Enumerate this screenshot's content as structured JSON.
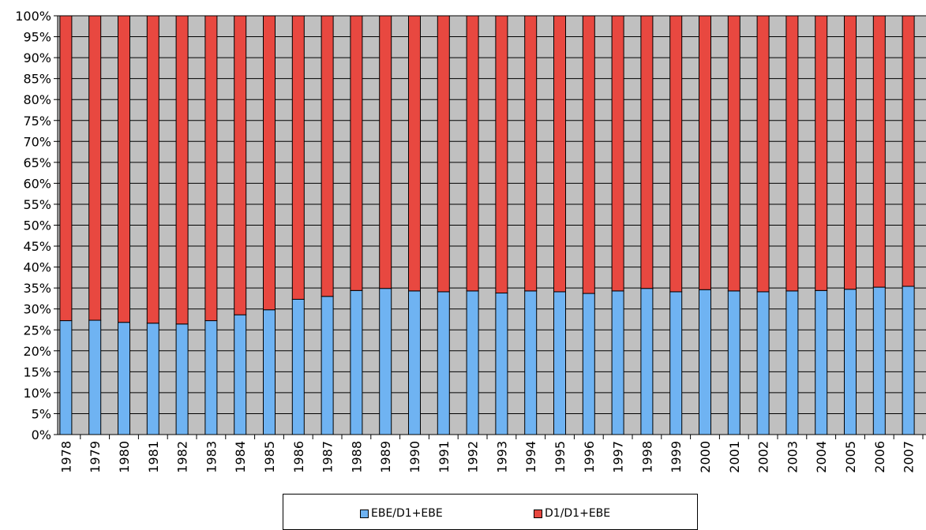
{
  "chart_data": {
    "type": "bar",
    "stacked": true,
    "categories": [
      "1978",
      "1979",
      "1980",
      "1981",
      "1982",
      "1983",
      "1984",
      "1985",
      "1986",
      "1987",
      "1988",
      "1989",
      "1990",
      "1991",
      "1992",
      "1993",
      "1994",
      "1995",
      "1996",
      "1997",
      "1998",
      "1999",
      "2000",
      "2001",
      "2002",
      "2003",
      "2004",
      "2005",
      "2006",
      "2007"
    ],
    "series": [
      {
        "name": "EBE/D1+EBE",
        "color": "#6fb3f2",
        "values": [
          27.2,
          27.3,
          26.8,
          26.6,
          26.4,
          27.2,
          28.6,
          29.8,
          32.3,
          33.0,
          34.4,
          34.9,
          34.3,
          34.1,
          34.3,
          33.8,
          34.3,
          34.1,
          33.7,
          34.3,
          34.9,
          34.1,
          34.6,
          34.3,
          34.1,
          34.3,
          34.4,
          34.7,
          35.2,
          35.4
        ]
      },
      {
        "name": "D1/D1+EBE",
        "color": "#e84840",
        "values": [
          72.8,
          72.7,
          73.2,
          73.4,
          73.6,
          72.8,
          71.4,
          70.2,
          67.7,
          67.0,
          65.6,
          65.1,
          65.7,
          65.9,
          65.7,
          66.2,
          65.7,
          65.9,
          66.3,
          65.7,
          65.1,
          65.9,
          65.4,
          65.7,
          65.9,
          65.7,
          65.6,
          65.3,
          64.8,
          64.6
        ]
      }
    ],
    "yticks": [
      "0%",
      "5%",
      "10%",
      "15%",
      "20%",
      "25%",
      "30%",
      "35%",
      "40%",
      "45%",
      "50%",
      "55%",
      "60%",
      "65%",
      "70%",
      "75%",
      "80%",
      "85%",
      "90%",
      "95%",
      "100%"
    ],
    "ylim": [
      0,
      100
    ],
    "grid": true,
    "plot_background": "#c0c0c0",
    "legend_position": "bottom"
  }
}
